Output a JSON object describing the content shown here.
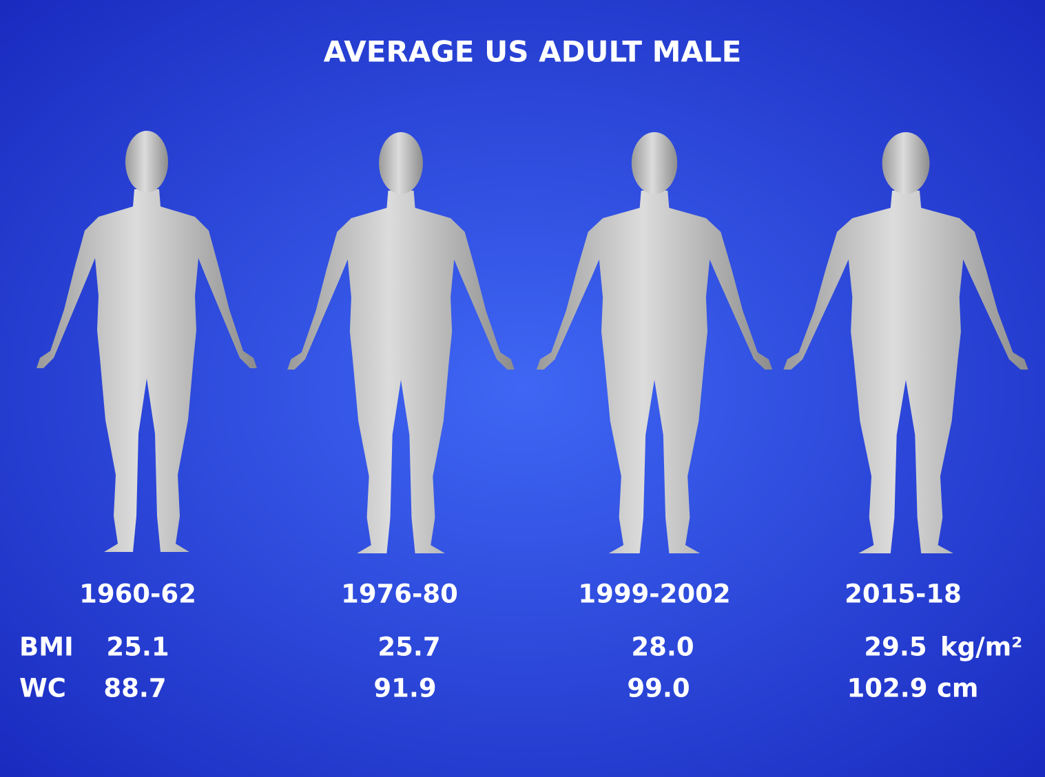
{
  "title": "AVERAGE US ADULT MALE",
  "periods": [
    "1960-62",
    "1976-80",
    "1999-2002",
    "2015-18"
  ],
  "rows": [
    {
      "label": "BMI",
      "values": [
        "25.1",
        "25.7",
        "28.0",
        "29.5"
      ],
      "unit": "kg/m²"
    },
    {
      "label": "WC",
      "values": [
        "88.7",
        "91.9",
        "99.0",
        "102.9"
      ],
      "unit": "cm"
    }
  ]
}
